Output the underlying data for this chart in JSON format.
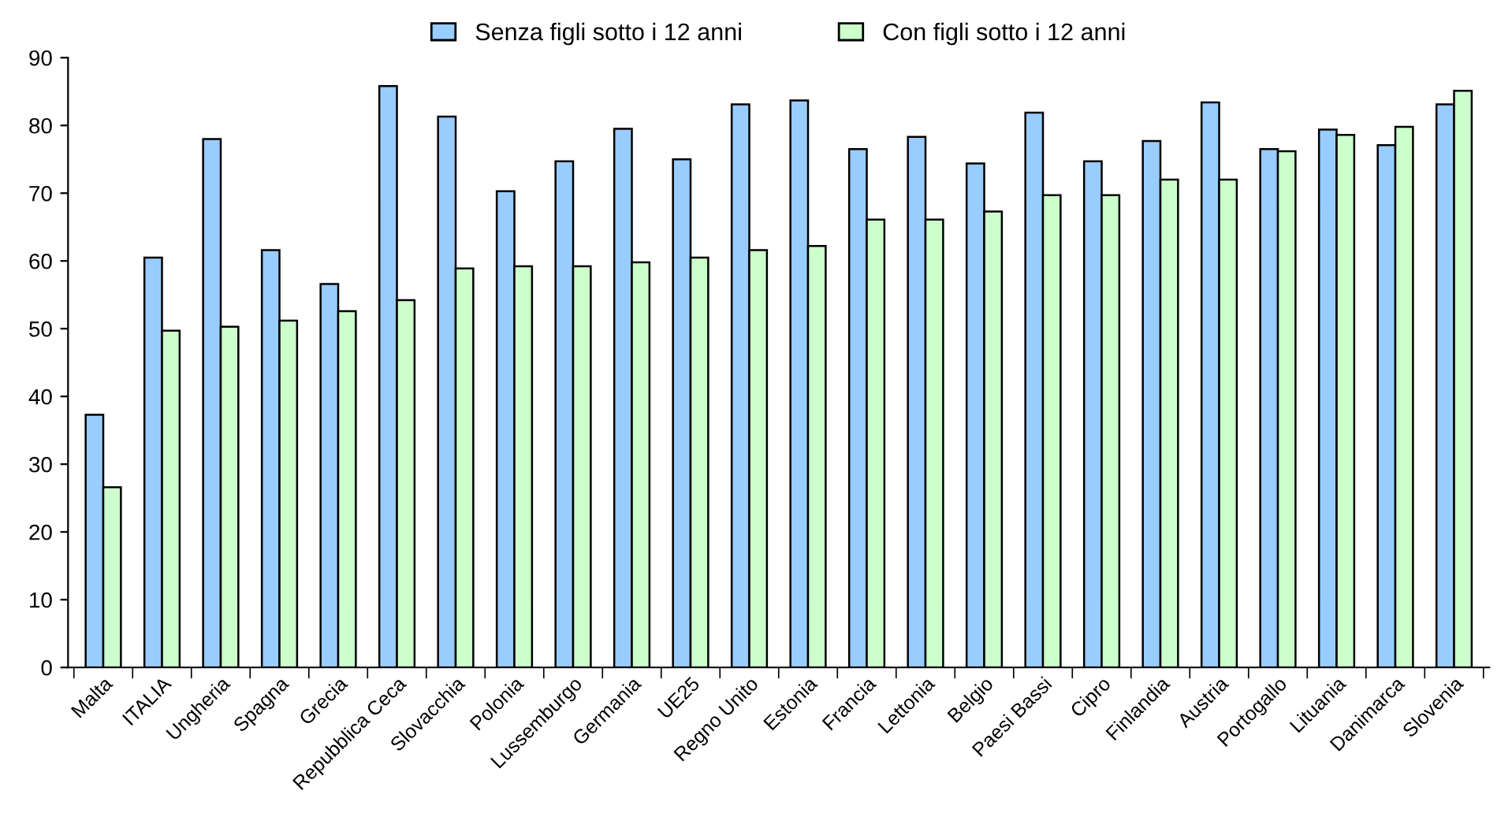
{
  "chart_data": {
    "type": "bar",
    "categories": [
      "Malta",
      "ITALIA",
      "Ungheria",
      "Spagna",
      "Grecia",
      "Repubblica Ceca",
      "Slovacchia",
      "Polonia",
      "Lussemburgo",
      "Germania",
      "UE25",
      "Regno Unito",
      "Estonia",
      "Francia",
      "Lettonia",
      "Belgio",
      "Paesi Bassi",
      "Cipro",
      "Finlandia",
      "Austria",
      "Portogallo",
      "Lituania",
      "Danimarca",
      "Slovenia"
    ],
    "series": [
      {
        "name": "Senza figli sotto i 12 anni",
        "color": "#99ccff",
        "values": [
          37.3,
          60.5,
          78.0,
          61.6,
          56.6,
          85.8,
          81.3,
          70.3,
          74.7,
          79.5,
          75.0,
          83.1,
          83.7,
          76.5,
          78.3,
          74.4,
          81.9,
          74.7,
          77.7,
          83.4,
          76.5,
          79.4,
          77.1,
          83.1
        ]
      },
      {
        "name": "Con figli sotto i 12 anni",
        "color": "#ccffcc",
        "values": [
          26.6,
          49.7,
          50.3,
          51.2,
          52.6,
          54.2,
          58.9,
          59.2,
          59.2,
          59.8,
          60.5,
          61.6,
          62.2,
          66.1,
          66.1,
          67.3,
          69.7,
          69.7,
          72.0,
          72.0,
          76.2,
          78.6,
          79.8,
          85.1
        ]
      }
    ],
    "ylim": [
      0,
      90
    ],
    "yticks": [
      0,
      10,
      20,
      30,
      40,
      50,
      60,
      70,
      80,
      90
    ],
    "grid": false,
    "legend": "top"
  }
}
